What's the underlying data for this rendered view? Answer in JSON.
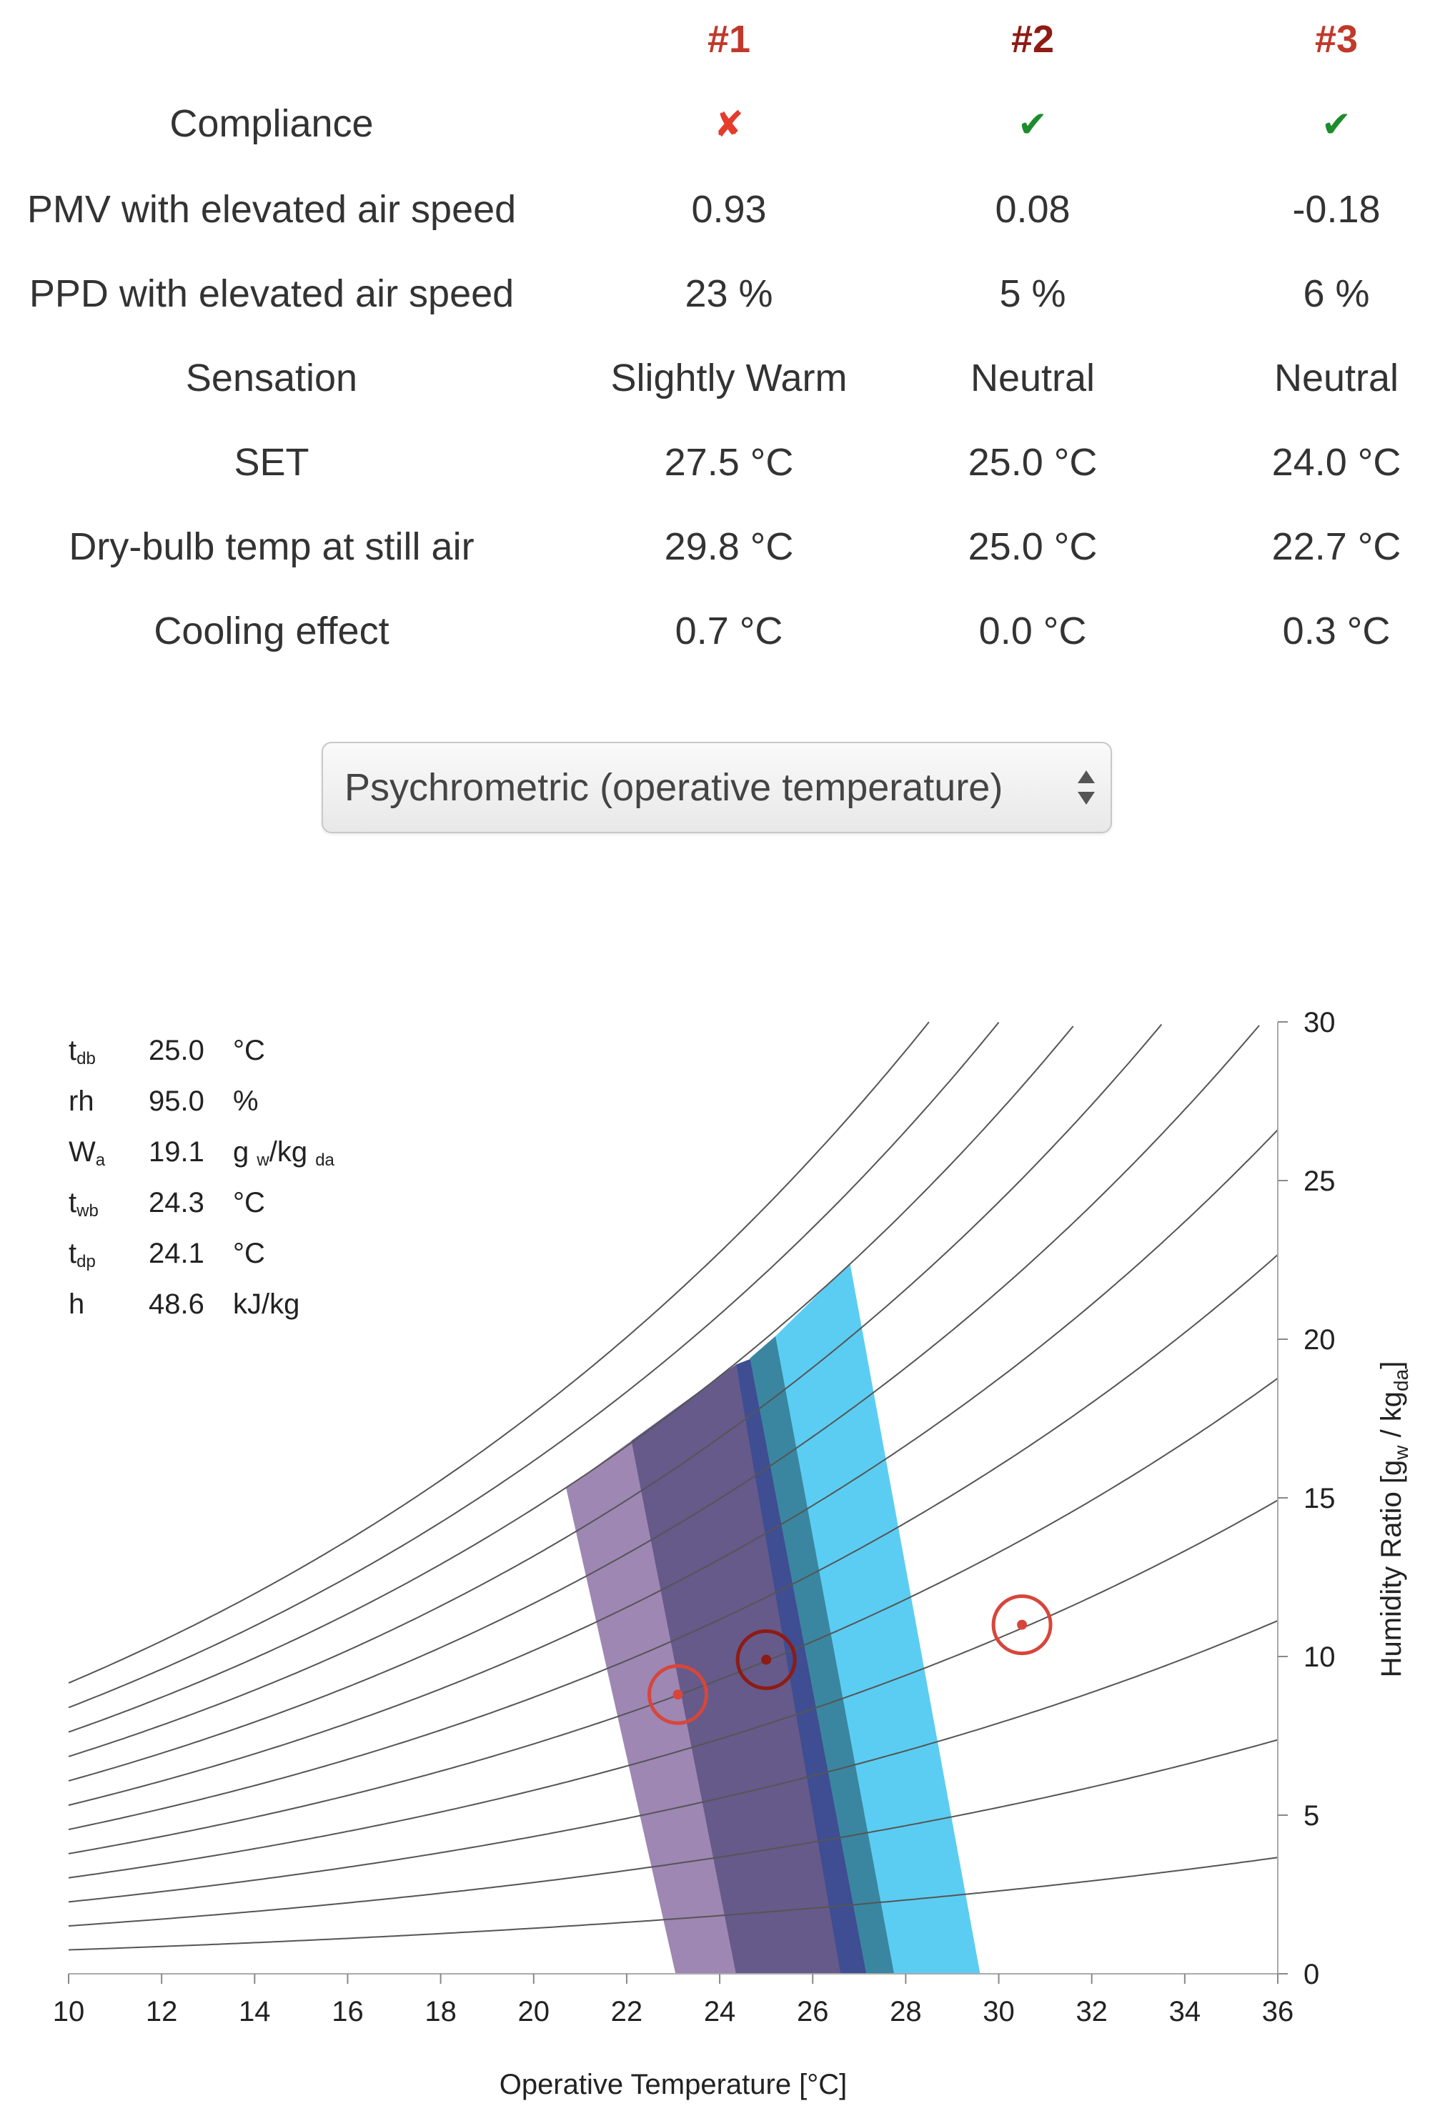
{
  "results": {
    "columns": [
      "#1",
      "#2",
      "#3"
    ],
    "compliance": {
      "label": "Compliance",
      "values": [
        {
          "glyph": "✘",
          "status": "fail"
        },
        {
          "glyph": "✔",
          "status": "pass"
        },
        {
          "glyph": "✔",
          "status": "pass"
        }
      ]
    },
    "rows": [
      {
        "label": "PMV with elevated air speed",
        "values": [
          "0.93",
          "0.08",
          "-0.18"
        ]
      },
      {
        "label": "PPD with elevated air speed",
        "values": [
          "23 %",
          "5 %",
          "6 %"
        ]
      },
      {
        "label": "Sensation",
        "values": [
          "Slightly Warm",
          "Neutral",
          "Neutral"
        ]
      },
      {
        "label": "SET",
        "values": [
          "27.5 °C",
          "25.0 °C",
          "24.0 °C"
        ]
      },
      {
        "label": "Dry-bulb temp at still air",
        "values": [
          "29.8 °C",
          "25.0 °C",
          "22.7 °C"
        ]
      },
      {
        "label": "Cooling effect",
        "values": [
          "0.7 °C",
          "0.0 °C",
          "0.3 °C"
        ]
      }
    ]
  },
  "chart_selector": {
    "selected": "Psychrometric (operative temperature)",
    "icon": "up-down-arrows-icon"
  },
  "readout": {
    "tdb": {
      "sym": "t",
      "sub": "db",
      "value": "25.0",
      "unit": "°C"
    },
    "rh": {
      "sym": "rh",
      "value": "95.0",
      "unit": "%"
    },
    "wa": {
      "sym": "W",
      "sub": "a",
      "value": "19.1",
      "unit_main": "g",
      "unit_sub1": "w",
      "unit_mid": "/kg",
      "unit_sub2": "da"
    },
    "twb": {
      "sym": "t",
      "sub": "wb",
      "value": "24.3",
      "unit": "°C"
    },
    "tdp": {
      "sym": "t",
      "sub": "dp",
      "value": "24.1",
      "unit": "°C"
    },
    "h": {
      "sym": "h",
      "value": "48.6",
      "unit": "kJ/kg"
    }
  },
  "chart_data": {
    "type": "scatter",
    "xlabel": "Operative Temperature [°C]",
    "ylabel_main": "Humidity Ratio [g",
    "ylabel_sub1": "w",
    "ylabel_mid": " / kg",
    "ylabel_sub2": "da",
    "ylabel_end": "]",
    "xlim": [
      10,
      36
    ],
    "ylim": [
      0,
      30
    ],
    "x_ticks": [
      10,
      12,
      14,
      16,
      18,
      20,
      22,
      24,
      26,
      28,
      30,
      32,
      34,
      36
    ],
    "y_ticks": [
      0,
      5,
      10,
      15,
      20,
      25,
      30
    ],
    "rh_curves": [
      10,
      20,
      30,
      40,
      50,
      60,
      70,
      80,
      90,
      100,
      110,
      120
    ],
    "comfort_zones": [
      {
        "color": "#9e87b3",
        "polygon": [
          [
            23.05,
            0
          ],
          [
            20.7,
            15.3
          ],
          [
            22.1,
            16.8
          ],
          [
            24.4,
            0
          ]
        ]
      },
      {
        "color": "#655a8a",
        "polygon": [
          [
            24.35,
            0
          ],
          [
            22.1,
            16.8
          ],
          [
            24.35,
            19.2
          ],
          [
            26.65,
            0
          ]
        ]
      },
      {
        "color": "#3f4d92",
        "polygon": [
          [
            26.6,
            0
          ],
          [
            24.35,
            19.2
          ],
          [
            24.7,
            19.4
          ],
          [
            27.2,
            0
          ]
        ]
      },
      {
        "color": "#3a86a0",
        "polygon": [
          [
            27.15,
            0
          ],
          [
            24.65,
            19.4
          ],
          [
            25.2,
            20.1
          ],
          [
            27.8,
            0
          ]
        ]
      },
      {
        "color": "#5ccdf2",
        "polygon": [
          [
            27.75,
            0
          ],
          [
            25.2,
            20.1
          ],
          [
            26.8,
            22.4
          ],
          [
            29.6,
            0
          ]
        ]
      }
    ],
    "points": [
      {
        "name": "#3",
        "x": 23.1,
        "y": 8.8,
        "color": "#d7463b"
      },
      {
        "name": "#2",
        "x": 25.0,
        "y": 9.9,
        "color": "#8e1b14"
      },
      {
        "name": "#1",
        "x": 30.5,
        "y": 11.0,
        "color": "#d7463b"
      }
    ]
  }
}
